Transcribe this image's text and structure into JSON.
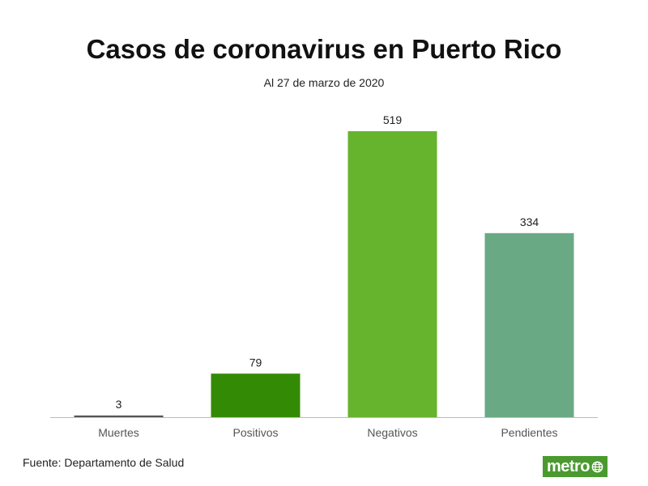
{
  "chart_data": {
    "type": "bar",
    "title": "Casos de coronavirus en Puerto Rico",
    "subtitle": "Al 27 de marzo de 2020",
    "xlabel": "",
    "ylabel": "",
    "categories": [
      "Muertes",
      "Positivos",
      "Negativos",
      "Pendientes"
    ],
    "values": [
      3,
      79,
      519,
      334
    ],
    "colors": [
      "#555555",
      "#338a05",
      "#66b32e",
      "#69aa85"
    ],
    "ylim": [
      0,
      519
    ],
    "grid": false,
    "legend": "none"
  },
  "footer": {
    "source": "Fuente: Departamento de Salud",
    "logo_text": "metro",
    "logo_icon": "globe-icon",
    "logo_color": "#4a9a2f"
  }
}
